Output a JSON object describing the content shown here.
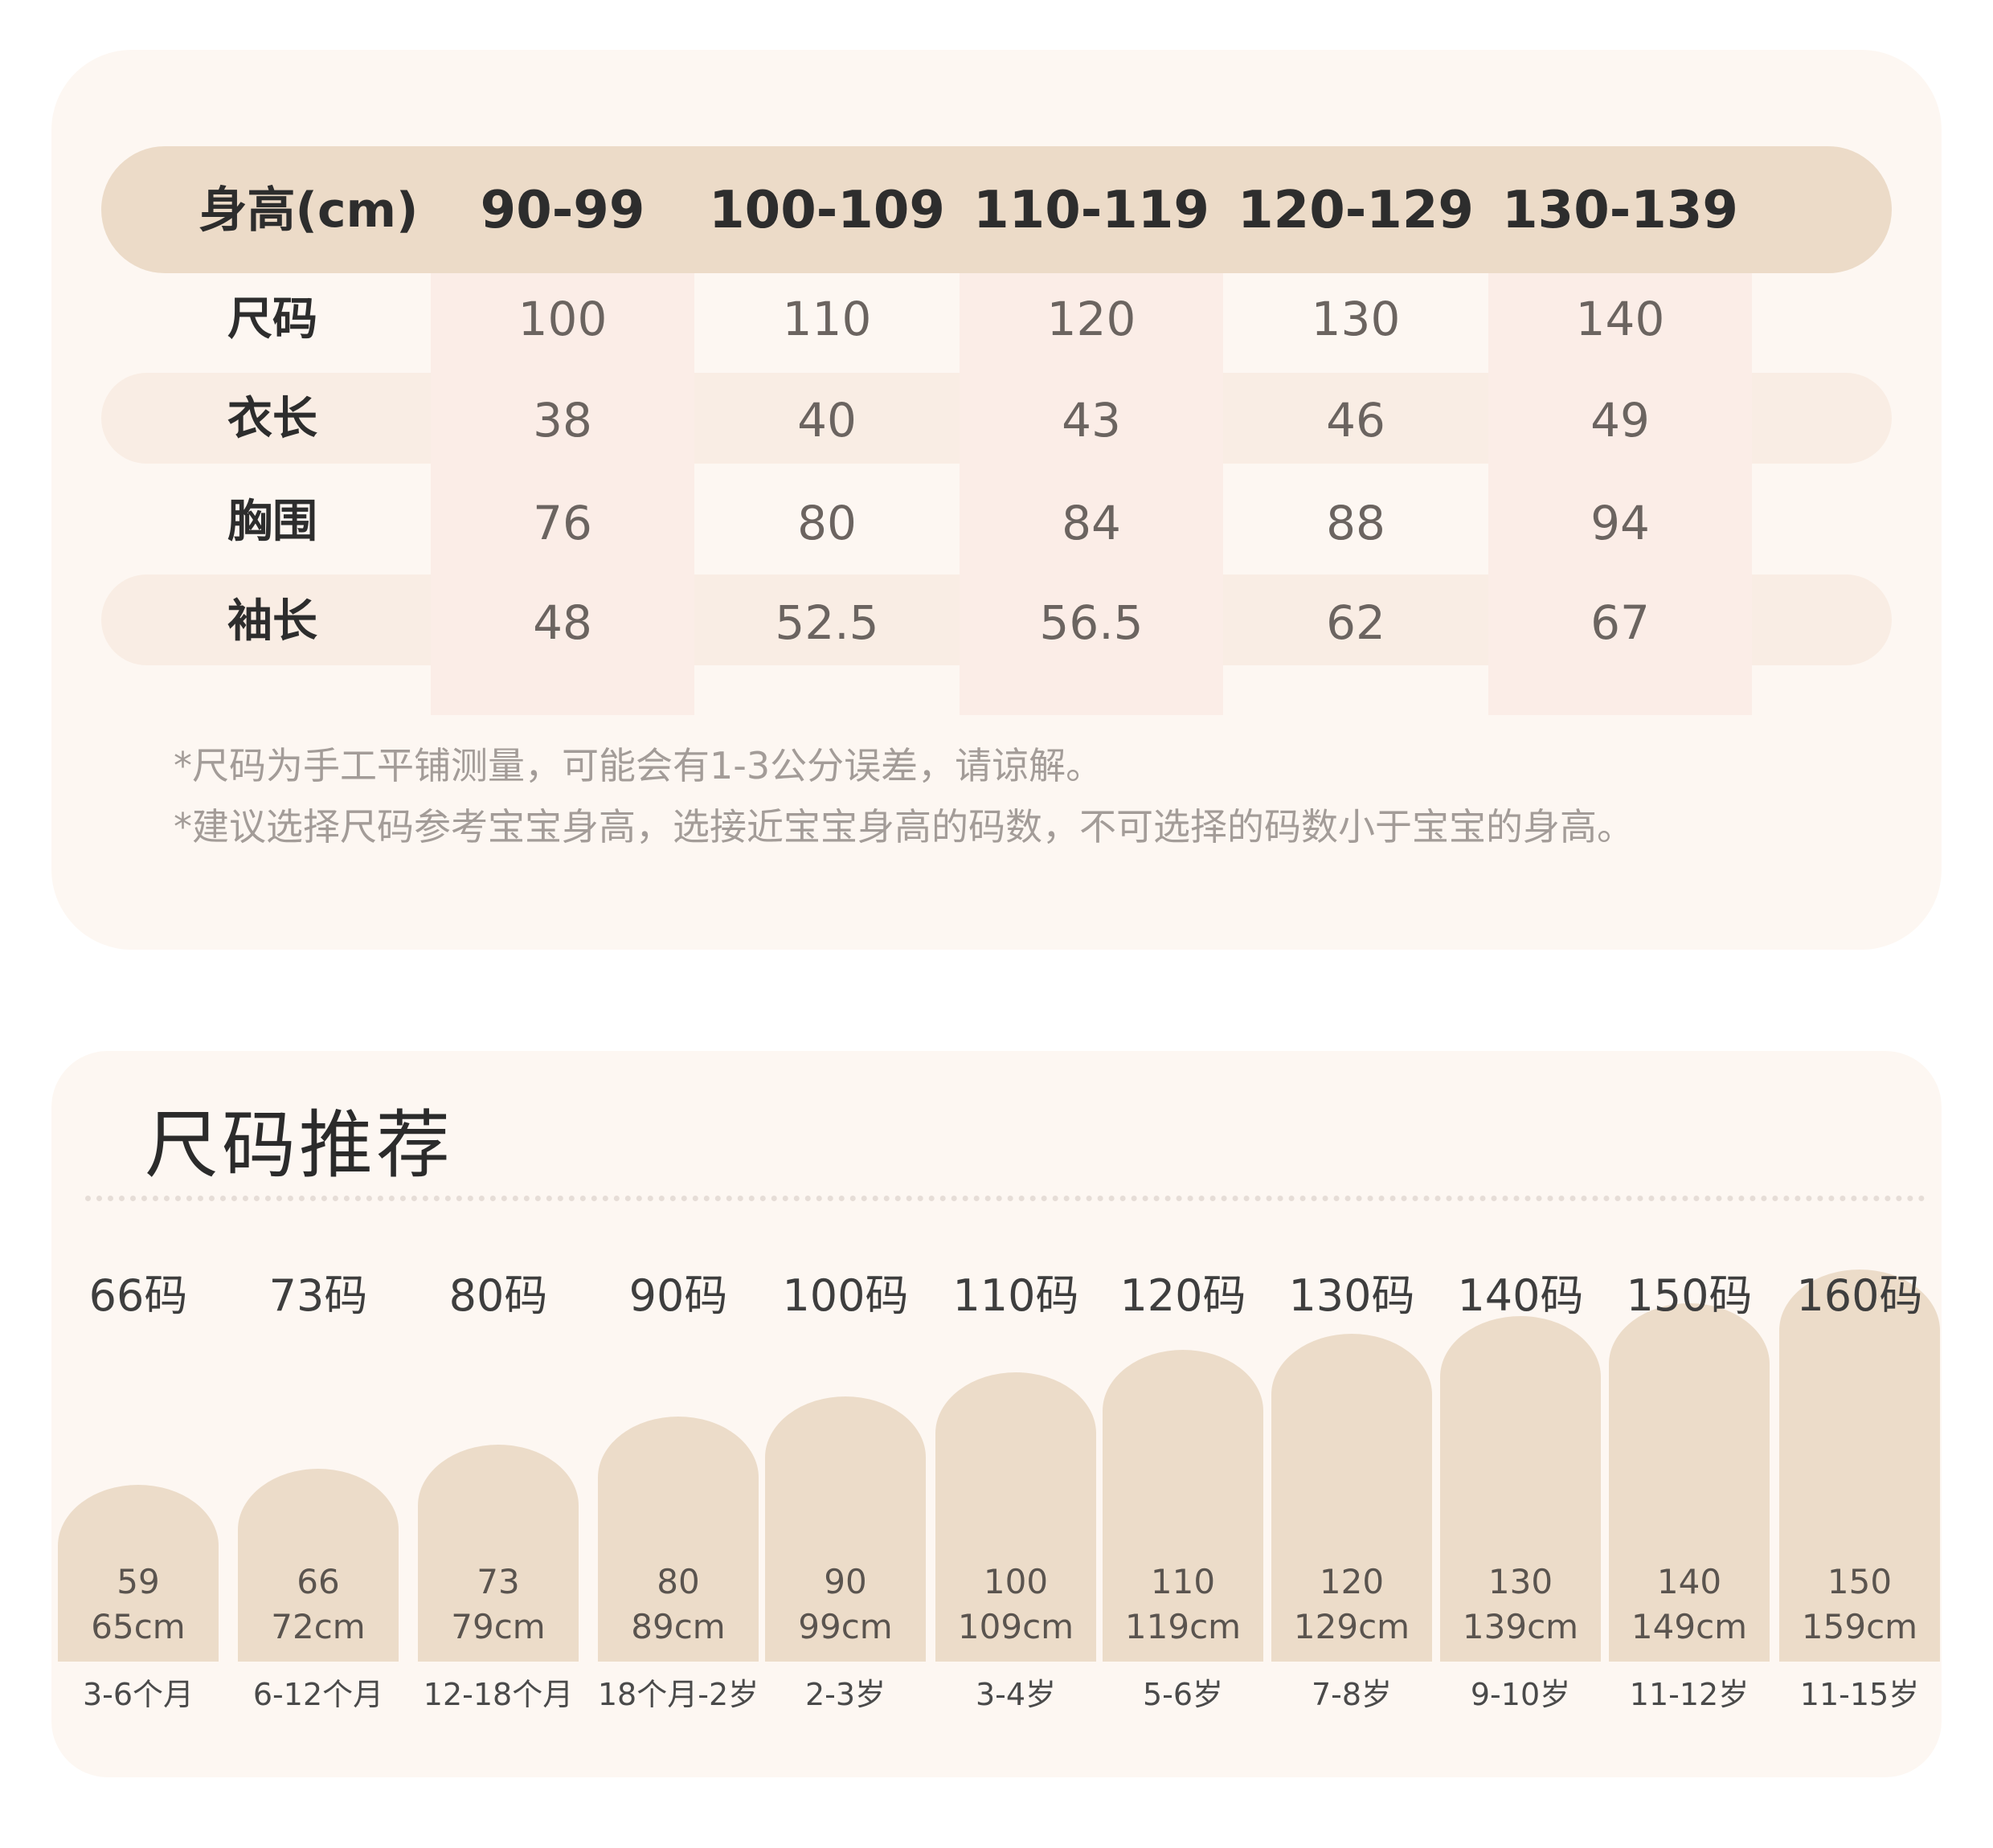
{
  "size_table": {
    "header_label": "身高(cm)",
    "height_ranges": [
      "90-99",
      "100-109",
      "110-119",
      "120-129",
      "130-139"
    ],
    "rows": [
      {
        "label": "尺码",
        "values": [
          "100",
          "110",
          "120",
          "130",
          "140"
        ]
      },
      {
        "label": "衣长",
        "values": [
          "38",
          "40",
          "43",
          "46",
          "49"
        ]
      },
      {
        "label": "胸围",
        "values": [
          "76",
          "80",
          "84",
          "88",
          "94"
        ]
      },
      {
        "label": "袖长",
        "values": [
          "48",
          "52.5",
          "56.5",
          "62",
          "67"
        ]
      }
    ],
    "notes": [
      "*尺码为手工平铺测量，可能会有1-3公分误差，请谅解。",
      "*建议选择尺码参考宝宝身高，选接近宝宝身高的码数，不可选择的码数小于宝宝的身高。"
    ]
  },
  "size_recommendation": {
    "title": "尺码推荐",
    "items": [
      {
        "size": "66码",
        "height_min": "59",
        "height_max": "65cm",
        "age": "3-6个月"
      },
      {
        "size": "73码",
        "height_min": "66",
        "height_max": "72cm",
        "age": "6-12个月"
      },
      {
        "size": "80码",
        "height_min": "73",
        "height_max": "79cm",
        "age": "12-18个月"
      },
      {
        "size": "90码",
        "height_min": "80",
        "height_max": "89cm",
        "age": "18个月-2岁"
      },
      {
        "size": "100码",
        "height_min": "90",
        "height_max": "99cm",
        "age": "2-3岁"
      },
      {
        "size": "110码",
        "height_min": "100",
        "height_max": "109cm",
        "age": "3-4岁"
      },
      {
        "size": "120码",
        "height_min": "110",
        "height_max": "119cm",
        "age": "5-6岁"
      },
      {
        "size": "130码",
        "height_min": "120",
        "height_max": "129cm",
        "age": "7-8岁"
      },
      {
        "size": "140码",
        "height_min": "130",
        "height_max": "139cm",
        "age": "9-10岁"
      },
      {
        "size": "150码",
        "height_min": "140",
        "height_max": "149cm",
        "age": "11-12岁"
      },
      {
        "size": "160码",
        "height_min": "150",
        "height_max": "159cm",
        "age": "11-15岁"
      }
    ]
  },
  "colors": {
    "card_background": "#fdf7f2",
    "header_pill": "#ecdbc8",
    "row_band": "#f9ede4",
    "column_band": "#fbede7",
    "arch_fill": "#ecdcc9",
    "note_text": "#a39c98"
  }
}
